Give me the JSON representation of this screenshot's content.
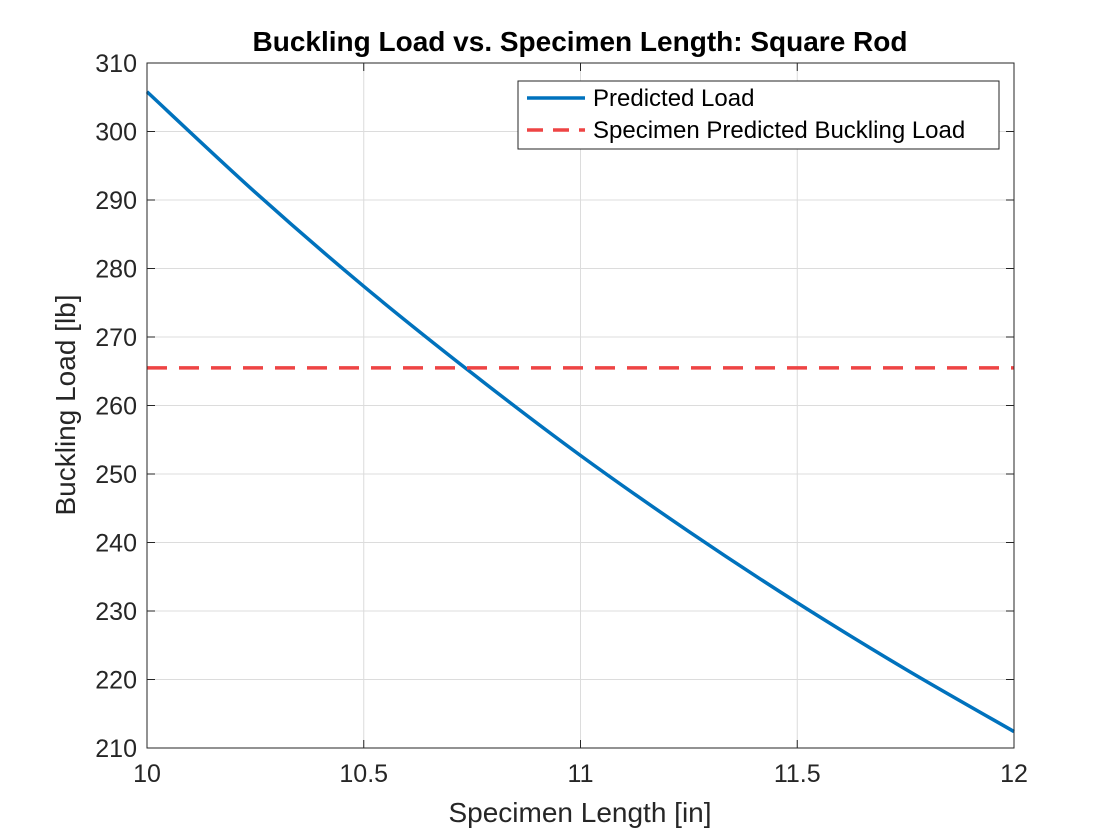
{
  "chart_data": {
    "type": "line",
    "title": "Buckling Load vs. Specimen Length: Square Rod",
    "xlabel": "Specimen Length [in]",
    "ylabel": "Buckling Load [lb]",
    "xlim": [
      10,
      12
    ],
    "ylim": [
      210,
      310
    ],
    "xticks": [
      10,
      10.5,
      11,
      11.5,
      12
    ],
    "xtick_labels": [
      "10",
      "10.5",
      "11",
      "11.5",
      "12"
    ],
    "yticks": [
      210,
      220,
      230,
      240,
      250,
      260,
      270,
      280,
      290,
      300,
      310
    ],
    "ytick_labels": [
      "210",
      "220",
      "230",
      "240",
      "250",
      "260",
      "270",
      "280",
      "290",
      "300",
      "310"
    ],
    "grid": true,
    "legend_position": "top-right",
    "series": [
      {
        "name": "Predicted Load",
        "style": "solid",
        "color": "#0072BD",
        "x": [
          10,
          10.25,
          10.5,
          10.75,
          11,
          11.25,
          11.5,
          11.75,
          12
        ],
        "y": [
          305.8,
          291.1,
          277.4,
          264.7,
          252.7,
          241.6,
          231.2,
          221.5,
          212.4
        ]
      },
      {
        "name": "Specimen Predicted Buckling Load",
        "style": "dashed",
        "color": "#EE4444",
        "x": [
          10,
          12
        ],
        "y": [
          265.5,
          265.5
        ]
      }
    ]
  }
}
